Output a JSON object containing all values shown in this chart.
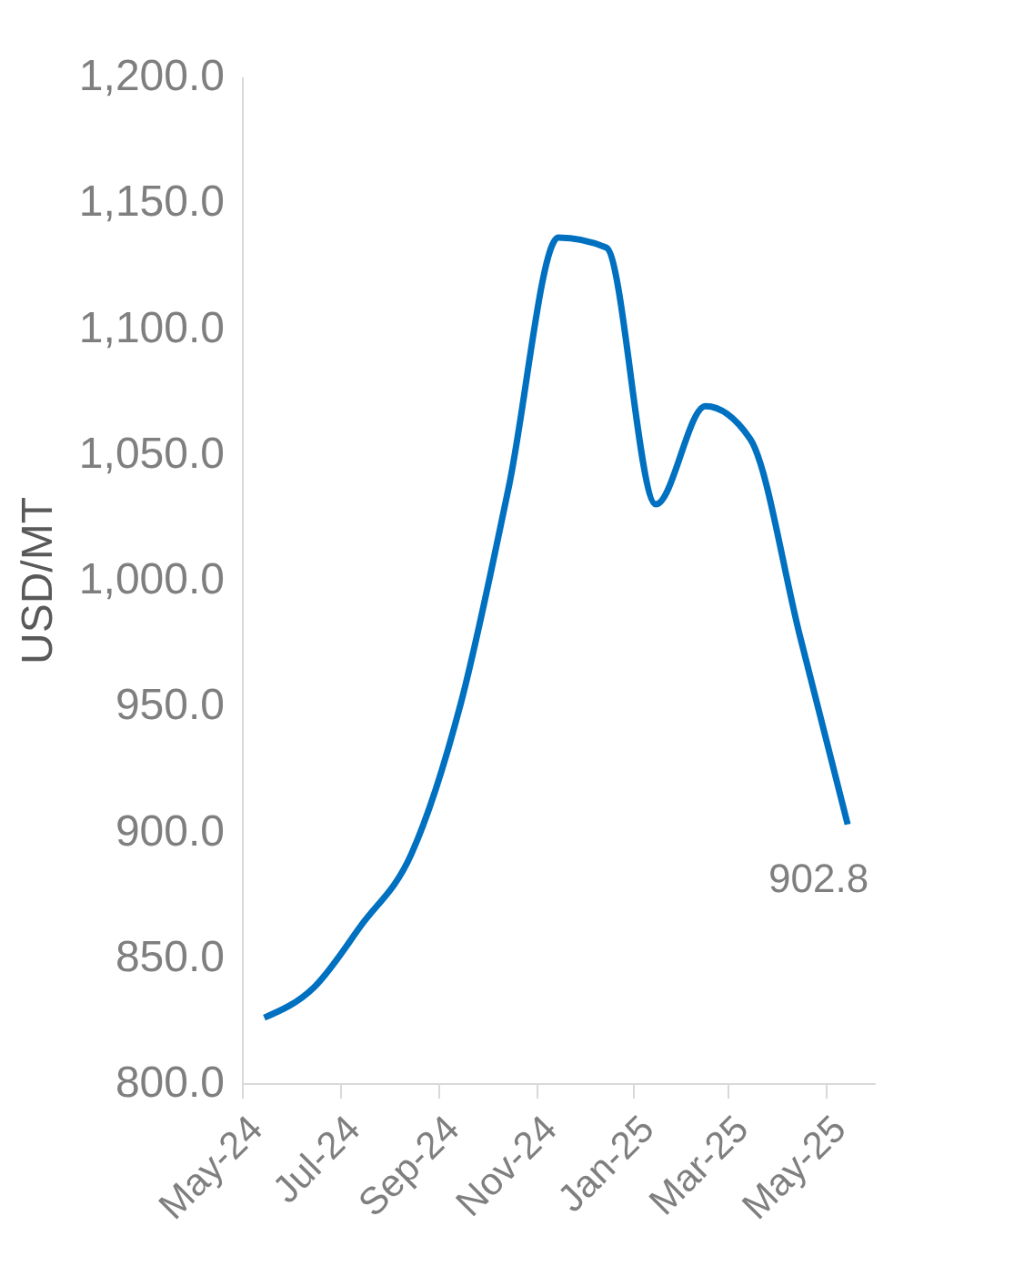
{
  "chart_data": {
    "type": "line",
    "ylabel": "USD/MT",
    "x": [
      "2024-05-15",
      "2024-06-15",
      "2024-07-15",
      "2024-08-15",
      "2024-09-15",
      "2024-10-15",
      "2024-11-15",
      "2024-12-15",
      "2025-01-15",
      "2025-02-15",
      "2025-03-15",
      "2025-04-15",
      "2025-05-15"
    ],
    "series": [
      {
        "color": "#0070c0",
        "values": [
          826,
          838,
          863,
          891,
          951,
          1037,
          1136,
          1132,
          1030,
          1069,
          1056,
          978,
          902.8
        ],
        "value_labels": [
          null,
          null,
          null,
          null,
          null,
          null,
          null,
          null,
          null,
          null,
          null,
          null,
          "902.8"
        ]
      }
    ],
    "xlim": [
      "2024-05-01",
      "2025-06-01"
    ],
    "xticks": [
      {
        "value": "2024-05-01",
        "label": "May-24"
      },
      {
        "value": "2024-07-01",
        "label": "Jul-24"
      },
      {
        "value": "2024-09-01",
        "label": "Sep-24"
      },
      {
        "value": "2024-11-01",
        "label": "Nov-24"
      },
      {
        "value": "2025-01-01",
        "label": "Jan-25"
      },
      {
        "value": "2025-03-01",
        "label": "Mar-25"
      },
      {
        "value": "2025-05-01",
        "label": "May-25"
      }
    ],
    "ylim": [
      800,
      1200
    ],
    "yticks": [
      {
        "value": 800,
        "label": "800.0"
      },
      {
        "value": 850,
        "label": "850.0"
      },
      {
        "value": 900,
        "label": "900.0"
      },
      {
        "value": 950,
        "label": "950.0"
      },
      {
        "value": 1000,
        "label": "1,000.0"
      },
      {
        "value": 1050,
        "label": "1,050.0"
      },
      {
        "value": 1100,
        "label": "1,100.0"
      },
      {
        "value": 1150,
        "label": "1,150.0"
      },
      {
        "value": 1200,
        "label": "1,200.0"
      }
    ],
    "grid": false,
    "marker": "none",
    "line_style": "solid"
  }
}
